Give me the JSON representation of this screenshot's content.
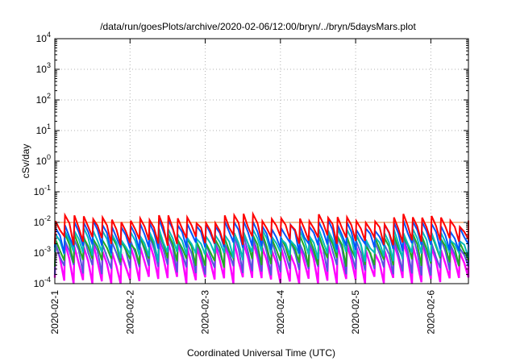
{
  "chart_data": {
    "type": "line",
    "title": "/data/run/goesPlots/archive/2020-02-06/12:00/bryn/../bryn/5daysMars.plot",
    "xlabel": "Coordinated Universal Time (UTC)",
    "ylabel": "cSv/day",
    "yscale": "log",
    "ylim": [
      0.0001,
      10000
    ],
    "xlim": [
      "2020-02-01",
      "2020-02-06 12:00"
    ],
    "x_ticks": [
      "2020-02-1",
      "2020-02-2",
      "2020-02-3",
      "2020-02-4",
      "2020-02-5",
      "2020-02-6"
    ],
    "y_ticks": [
      {
        "base": "10",
        "exp": "-4",
        "value": 0.0001
      },
      {
        "base": "10",
        "exp": "-3",
        "value": 0.001
      },
      {
        "base": "10",
        "exp": "-2",
        "value": 0.01
      },
      {
        "base": "10",
        "exp": "-1",
        "value": 0.1
      },
      {
        "base": "10",
        "exp": "0",
        "value": 1
      },
      {
        "base": "10",
        "exp": "1",
        "value": 10
      },
      {
        "base": "10",
        "exp": "2",
        "value": 100
      },
      {
        "base": "10",
        "exp": "3",
        "value": 1000
      },
      {
        "base": "10",
        "exp": "4",
        "value": 10000
      }
    ],
    "grid": true,
    "reference_line": {
      "value": 0.01,
      "color": "#e07a2a"
    },
    "series": [
      {
        "color": "#ff0000",
        "peak": 0.013,
        "trough": 0.0028
      },
      {
        "color": "#0055ff",
        "peak": 0.0085,
        "trough": 0.0016
      },
      {
        "color": "#00bbbb",
        "peak": 0.0045,
        "trough": 0.0008
      },
      {
        "color": "#22aa22",
        "peak": 0.0032,
        "trough": 0.0005
      },
      {
        "color": "#5555dd",
        "peak": 0.0025,
        "trough": 0.0003
      },
      {
        "color": "#ff00ff",
        "peak": 0.0016,
        "trough": 0.00012
      }
    ],
    "cycle_days": 0.125
  }
}
